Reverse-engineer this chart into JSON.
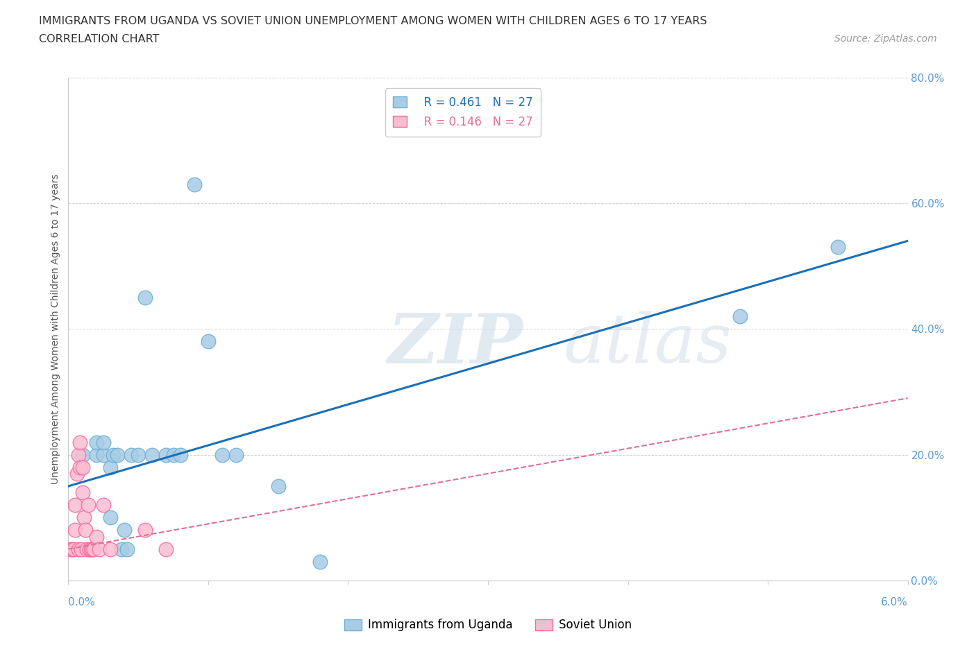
{
  "title_line1": "IMMIGRANTS FROM UGANDA VS SOVIET UNION UNEMPLOYMENT AMONG WOMEN WITH CHILDREN AGES 6 TO 17 YEARS",
  "title_line2": "CORRELATION CHART",
  "source": "Source: ZipAtlas.com",
  "ylabel": "Unemployment Among Women with Children Ages 6 to 17 years",
  "xlim": [
    0.0,
    6.0
  ],
  "ylim": [
    0.0,
    80.0
  ],
  "yticks": [
    0.0,
    20.0,
    40.0,
    60.0,
    80.0
  ],
  "xticks": [
    0.0,
    1.0,
    2.0,
    3.0,
    4.0,
    5.0,
    6.0
  ],
  "uganda_color": "#a8cce4",
  "soviet_color": "#f9bdd0",
  "uganda_edge_color": "#6baed6",
  "soviet_edge_color": "#f768a1",
  "trend_blue": "#1a6fba",
  "trend_pink": "#e07090",
  "tick_color": "#5b9bd5",
  "legend_r_uganda": "R = 0.461",
  "legend_n_uganda": "N = 27",
  "legend_r_soviet": "R = 0.146",
  "legend_n_soviet": "N = 27",
  "uganda_x": [
    0.1,
    0.2,
    0.2,
    0.25,
    0.25,
    0.3,
    0.3,
    0.32,
    0.35,
    0.38,
    0.4,
    0.42,
    0.45,
    0.5,
    0.55,
    0.6,
    0.7,
    0.75,
    0.8,
    0.9,
    1.0,
    1.1,
    1.2,
    1.5,
    1.8,
    4.8,
    5.5
  ],
  "uganda_y": [
    20.0,
    20.0,
    22.0,
    20.0,
    22.0,
    10.0,
    18.0,
    20.0,
    20.0,
    5.0,
    8.0,
    5.0,
    20.0,
    20.0,
    45.0,
    20.0,
    20.0,
    20.0,
    20.0,
    63.0,
    38.0,
    20.0,
    20.0,
    15.0,
    3.0,
    42.0,
    53.0
  ],
  "soviet_x": [
    0.02,
    0.03,
    0.04,
    0.05,
    0.05,
    0.06,
    0.07,
    0.07,
    0.08,
    0.08,
    0.09,
    0.1,
    0.1,
    0.11,
    0.12,
    0.13,
    0.14,
    0.15,
    0.16,
    0.17,
    0.18,
    0.2,
    0.22,
    0.25,
    0.3,
    0.55,
    0.7
  ],
  "soviet_y": [
    5.0,
    5.0,
    5.0,
    8.0,
    12.0,
    17.0,
    5.0,
    20.0,
    18.0,
    22.0,
    5.0,
    14.0,
    18.0,
    10.0,
    8.0,
    5.0,
    12.0,
    5.0,
    5.0,
    5.0,
    5.0,
    7.0,
    5.0,
    12.0,
    5.0,
    8.0,
    5.0
  ],
  "trend_blue_intercept": 15.0,
  "trend_blue_slope": 6.5,
  "trend_pink_intercept": 5.0,
  "trend_pink_slope": 4.0
}
